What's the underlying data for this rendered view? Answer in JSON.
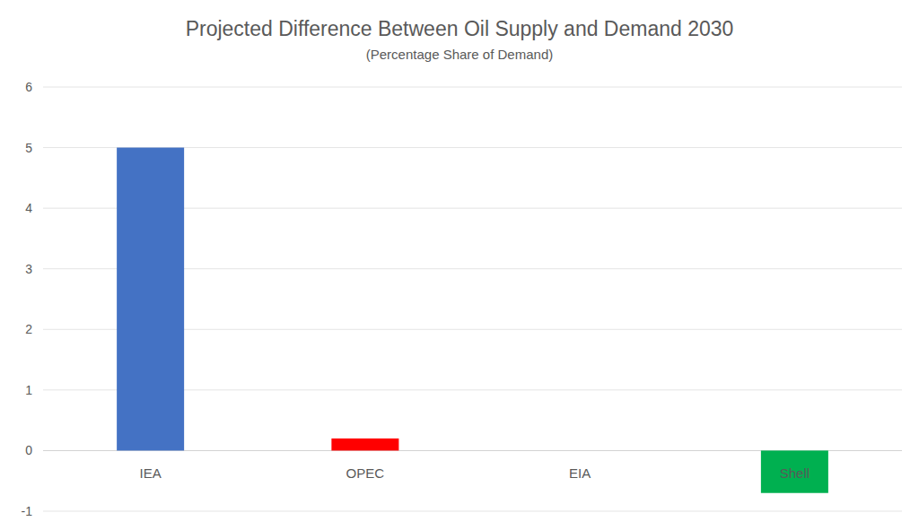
{
  "chart_data": {
    "type": "bar",
    "title": "Projected Difference Between Oil Supply and Demand 2030",
    "subtitle": "(Percentage Share of Demand)",
    "categories": [
      "IEA",
      "OPEC",
      "EIA",
      "Shell"
    ],
    "values": [
      5,
      0.2,
      0,
      -0.7
    ],
    "colors": [
      "#4472c4",
      "#ff0000",
      "#4472c4",
      "#00b050"
    ],
    "ylim": [
      -1,
      6
    ],
    "yticks": [
      -1,
      0,
      1,
      2,
      3,
      4,
      5,
      6
    ],
    "grid": true
  }
}
